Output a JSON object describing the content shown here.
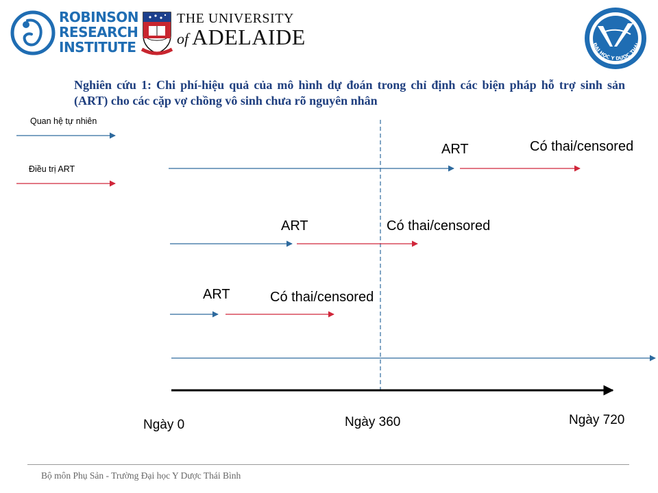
{
  "header": {
    "robinson": {
      "lines": [
        "ROBINSON",
        "RESEARCH",
        "INSTITUTE"
      ]
    },
    "adelaide": {
      "line1": "THE UNIVERSITY",
      "of": "of",
      "name": "ADELAIDE"
    },
    "seal_text": "ĐẠI HỌC Y DƯỢC THÁI BÌNH"
  },
  "title": "Nghiên cứu 1: Chi phí-hiệu quả của mô hình dự đoán trong chỉ định các biện pháp hỗ trợ sinh sản (ART) cho các cặp vợ chồng vô sinh chưa rõ nguyên nhân",
  "legend": {
    "natural": "Quan hệ tự nhiên",
    "art": "Điều trị ART"
  },
  "labels": {
    "row1_art": "ART",
    "row1_outcome": "Có thai/censored",
    "row2_art": "ART",
    "row2_outcome": "Có thai/censored",
    "row3_art": "ART",
    "row3_outcome": "Có thai/censored"
  },
  "timeline": {
    "day0": "Ngày 0",
    "day360": "Ngày 360",
    "day720": "Ngày 720"
  },
  "colors": {
    "natural": "#2e6a9e",
    "art": "#d0263a",
    "axis": "#000000",
    "title": "#1f3f7f",
    "logo_blue": "#1f6db3"
  },
  "footer": "Bộ môn Phụ Sản - Trường Đại học Y Dược Thái Bình"
}
